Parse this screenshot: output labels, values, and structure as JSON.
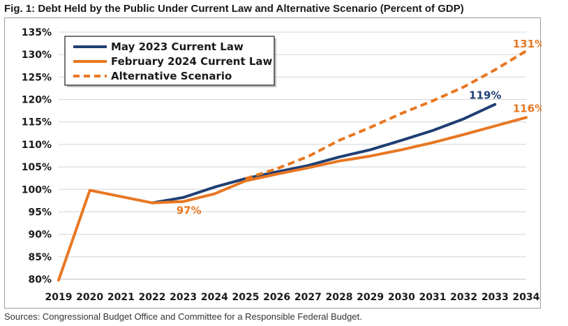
{
  "title": "Fig. 1: Debt Held by the Public Under Current Law and Alternative Scenario (Percent of GDP)",
  "source": "Sources: Congressional Budget Office and Committee for a Responsible Federal Budget.",
  "chart_data": {
    "type": "line",
    "title": "Fig. 1: Debt Held by the Public Under Current Law and Alternative Scenario (Percent of GDP)",
    "xlabel": "",
    "ylabel": "",
    "x": [
      "2019",
      "2020",
      "2021",
      "2022",
      "2023",
      "2024",
      "2025",
      "2026",
      "2027",
      "2028",
      "2029",
      "2030",
      "2031",
      "2032",
      "2033",
      "2034"
    ],
    "ylim": [
      80,
      135
    ],
    "yticks": [
      80,
      85,
      90,
      95,
      100,
      105,
      110,
      115,
      120,
      125,
      130,
      135
    ],
    "ytick_labels": [
      "80%",
      "85%",
      "90%",
      "95%",
      "100%",
      "105%",
      "110%",
      "115%",
      "120%",
      "125%",
      "130%",
      "135%"
    ],
    "grid": true,
    "legend_position": "top-left",
    "series": [
      {
        "name": "May 2023 Current Law",
        "color": "#1f3f73",
        "style": "solid",
        "values": [
          null,
          null,
          null,
          97,
          98.2,
          100.5,
          102.4,
          103.9,
          105.3,
          107.2,
          108.8,
          110.9,
          113.1,
          115.7,
          118.9,
          null
        ]
      },
      {
        "name": "February 2024 Current Law",
        "color": "#e87722",
        "style": "solid",
        "values": [
          79.8,
          99.8,
          98.4,
          97,
          97.3,
          99,
          101.9,
          103.4,
          104.8,
          106.3,
          107.4,
          108.8,
          110.4,
          112.2,
          114.1,
          116
        ]
      },
      {
        "name": "Alternative Scenario",
        "color": "#e87722",
        "style": "dashed",
        "values": [
          null,
          null,
          null,
          null,
          null,
          null,
          102.4,
          104.6,
          107.3,
          110.9,
          113.8,
          116.9,
          119.7,
          122.8,
          126.6,
          130.8
        ]
      }
    ],
    "annotations": [
      {
        "text": "97%",
        "x": "2023",
        "y": 97,
        "color": "#e87722"
      },
      {
        "text": "119%",
        "x": "2033",
        "y": 118.9,
        "color": "#1f3f73"
      },
      {
        "text": "116%",
        "x": "2034",
        "y": 116,
        "color": "#e87722"
      },
      {
        "text": "131%",
        "x": "2034",
        "y": 130.8,
        "color": "#e87722"
      }
    ]
  }
}
